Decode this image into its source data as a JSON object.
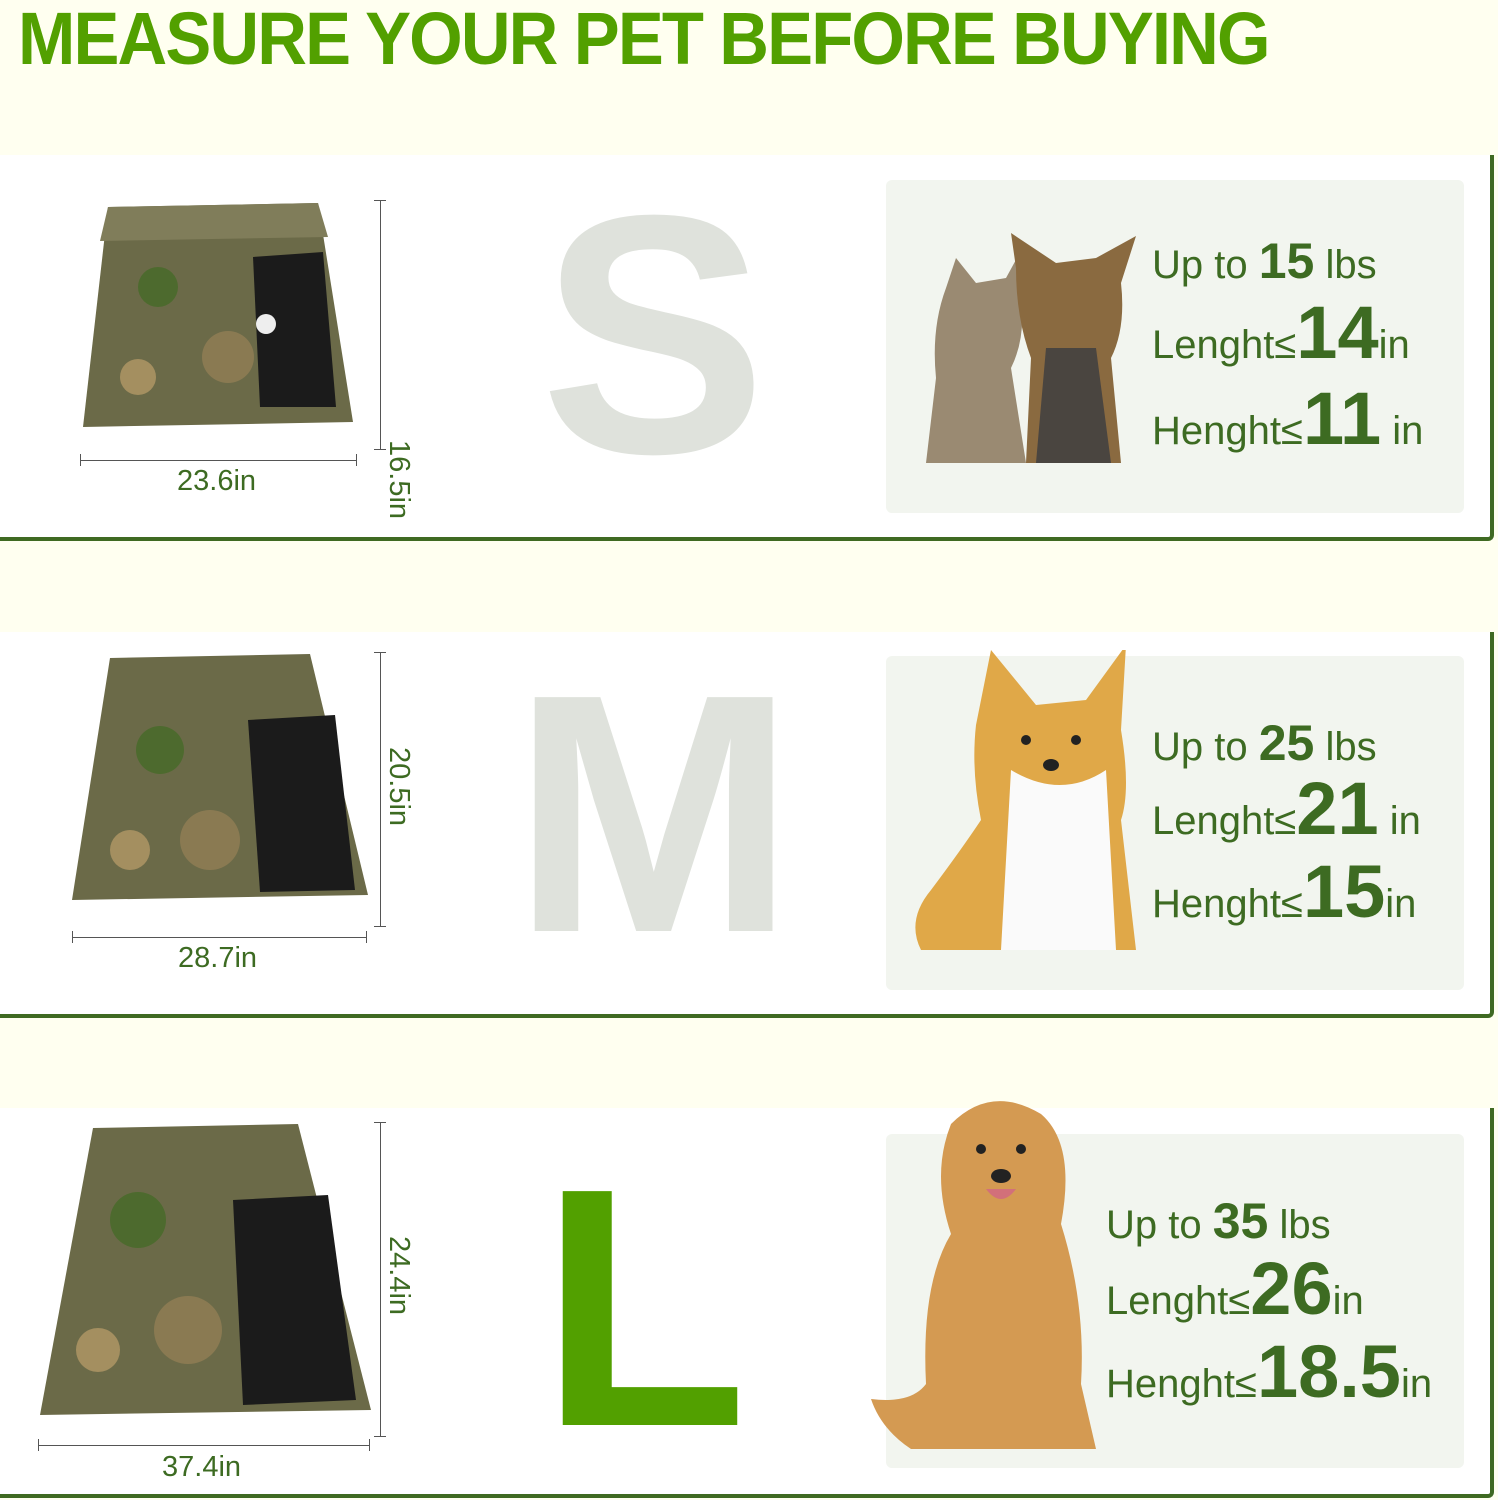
{
  "title": "MEASURE YOUR PET BEFORE BUYING",
  "colors": {
    "accent": "#52a000",
    "text": "#3d6b22",
    "inactive_letter": "#dfe2dc",
    "border": "#3f6a22"
  },
  "sizes": [
    {
      "letter": "S",
      "active": false,
      "width": "23.6in",
      "height": "16.5in",
      "weight_prefix": "Up to",
      "weight": "15",
      "weight_unit": "lbs",
      "length_label": "Lenght≤",
      "length": "14",
      "length_unit": "in",
      "height_label": "Henght≤",
      "pet_height": "11",
      "pet_height_unit": "in",
      "pets": "cat-and-yorkshire-terrier"
    },
    {
      "letter": "M",
      "active": false,
      "width": "28.7in",
      "height": "20.5in",
      "weight_prefix": "Up to",
      "weight": "25",
      "weight_unit": "lbs",
      "length_label": "Lenght≤",
      "length": "21",
      "length_unit": "in",
      "height_label": "Henght≤",
      "pet_height": "15",
      "pet_height_unit": "in",
      "pets": "corgi"
    },
    {
      "letter": "L",
      "active": true,
      "width": "37.4in",
      "height": "24.4in",
      "weight_prefix": "Up to",
      "weight": "35",
      "weight_unit": "lbs",
      "length_label": "Lenght≤",
      "length": "26",
      "length_unit": "in",
      "height_label": "Henght≤",
      "pet_height": "18.5",
      "pet_height_unit": "in",
      "pets": "golden-retriever"
    }
  ]
}
